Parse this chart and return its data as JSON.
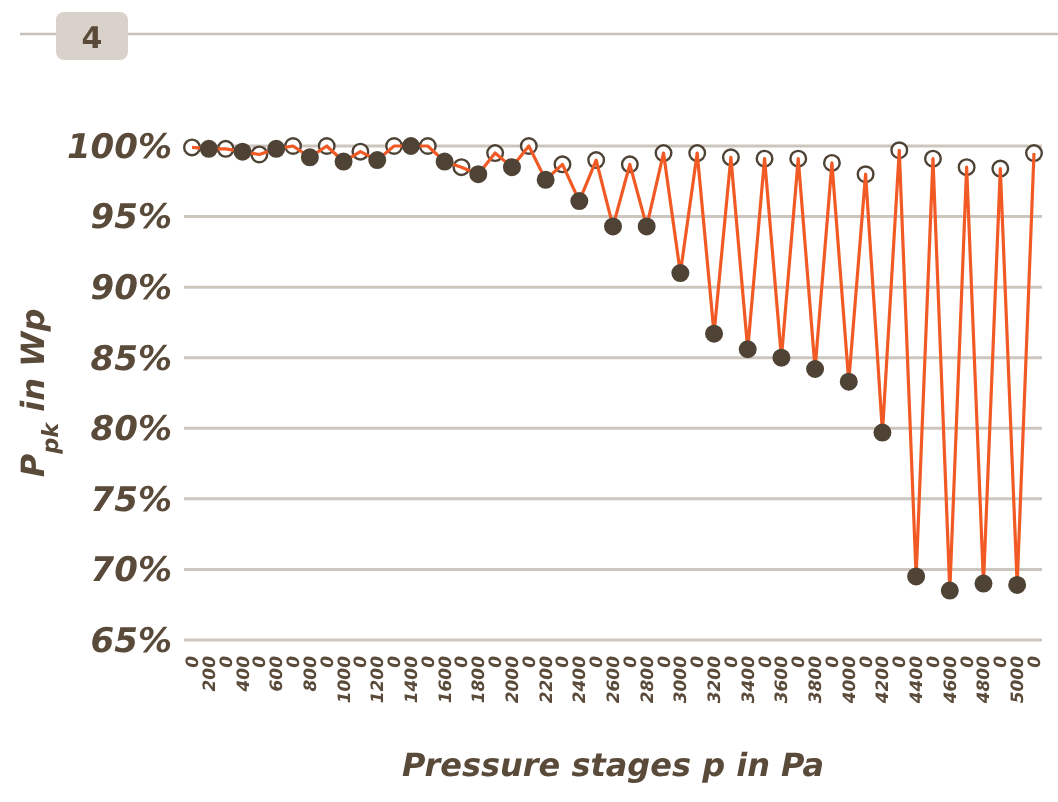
{
  "chart_data": {
    "type": "line",
    "title": "4",
    "xlabel": "Pressure stages p in Pa",
    "ylabel": "P$_{pk}$ in Wp",
    "categories": [
      "0",
      "200",
      "0",
      "400",
      "0",
      "600",
      "0",
      "800",
      "0",
      "1000",
      "0",
      "1200",
      "0",
      "1400",
      "0",
      "1600",
      "0",
      "1800",
      "0",
      "2000",
      "0",
      "2200",
      "0",
      "2400",
      "0",
      "2600",
      "0",
      "2800",
      "0",
      "3000",
      "0",
      "3200",
      "0",
      "3400",
      "0",
      "3600",
      "0",
      "3800",
      "0",
      "4000",
      "0",
      "4200",
      "0",
      "4400",
      "0",
      "4600",
      "0",
      "4800",
      "0",
      "5000",
      "0"
    ],
    "series": [
      {
        "type": "scatter",
        "color": "#ffffff",
        "marker": "circle",
        "values": [
          99.9,
          null,
          99.8,
          null,
          99.4,
          null,
          100,
          null,
          100,
          null,
          99.6,
          null,
          100,
          null,
          100,
          null,
          98.5,
          null,
          99.5,
          null,
          100.0,
          null,
          98.7,
          null,
          99.0,
          null,
          98.7,
          null,
          99.5,
          null,
          99.5,
          null,
          99.2,
          null,
          99.1,
          null,
          99.1,
          null,
          98.8,
          null,
          98.0,
          null,
          99.7,
          null,
          99.1,
          null,
          98.5,
          null,
          98.4,
          null,
          99.5
        ]
      },
      {
        "color": "#f15a24",
        "marker": "none",
        "values": [
          99.9,
          99.8,
          99.8,
          99.6,
          99.4,
          99.8,
          100,
          99.2,
          100,
          98.9,
          99.6,
          99.0,
          100,
          100.0,
          100,
          98.9,
          98.5,
          98.0,
          99.5,
          98.5,
          100.0,
          97.6,
          98.7,
          96.1,
          99.0,
          94.3,
          98.7,
          94.3,
          99.5,
          91.0,
          99.5,
          86.7,
          99.2,
          85.6,
          99.1,
          85.0,
          99.1,
          84.2,
          98.8,
          83.3,
          98.0,
          79.7,
          99.7,
          69.5,
          99.1,
          68.5,
          98.5,
          69.0,
          98.4,
          68.9,
          99.5
        ]
      },
      {
        "type": "scatter",
        "color": "#4f4336",
        "marker": "circle",
        "values": [
          null,
          99.8,
          null,
          99.6,
          null,
          99.8,
          null,
          99.2,
          null,
          98.9,
          null,
          99.0,
          null,
          100.0,
          null,
          98.9,
          null,
          98.0,
          null,
          98.5,
          null,
          97.6,
          null,
          96.1,
          null,
          94.3,
          null,
          94.3,
          null,
          91.0,
          null,
          86.7,
          null,
          85.6,
          null,
          85.0,
          null,
          84.2,
          null,
          83.3,
          null,
          79.7,
          null,
          69.5,
          null,
          68.5,
          null,
          69.0,
          null,
          68.9,
          null
        ]
      }
    ],
    "ylim": [
      65,
      100
    ],
    "yticks": [
      {
        "value": 65,
        "label": "65%"
      },
      {
        "value": 70,
        "label": "70%"
      },
      {
        "value": 75,
        "label": "75%"
      },
      {
        "value": 80,
        "label": "80%"
      },
      {
        "value": 85,
        "label": "85%"
      },
      {
        "value": 90,
        "label": "90%"
      },
      {
        "value": 95,
        "label": "95%"
      },
      {
        "value": 100,
        "label": "100%"
      }
    ],
    "grid": "y"
  }
}
